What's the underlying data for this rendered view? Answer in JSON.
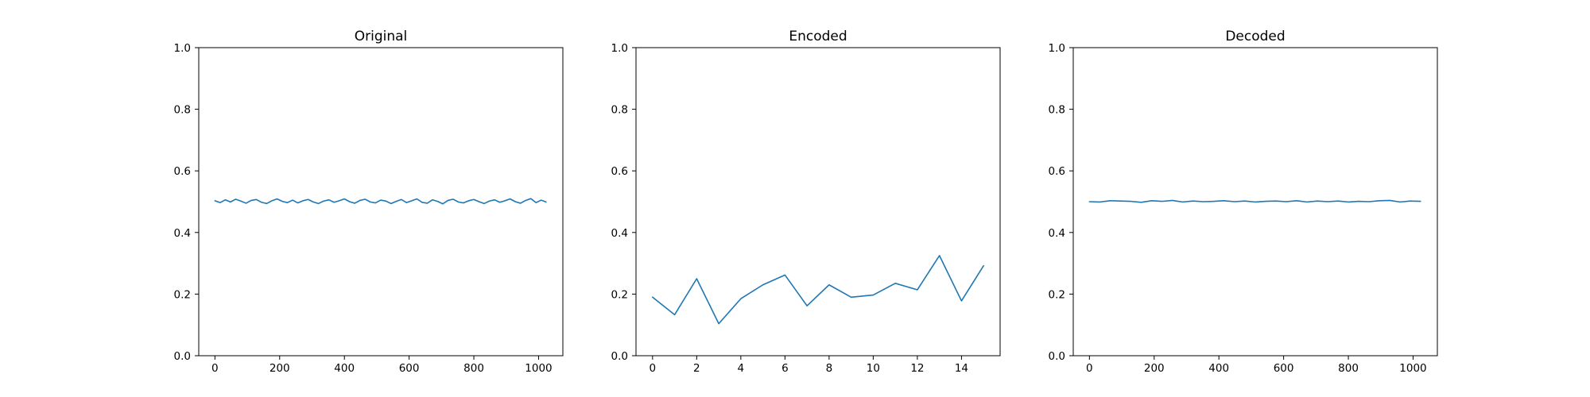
{
  "chart_data": [
    {
      "type": "line",
      "title": "Original",
      "xlabel": "",
      "ylabel": "",
      "xlim": [
        -50,
        1075
      ],
      "ylim": [
        0.0,
        1.0
      ],
      "xticks": [
        0,
        200,
        400,
        600,
        800,
        1000
      ],
      "xtick_labels": [
        "0",
        "200",
        "400",
        "600",
        "800",
        "1000"
      ],
      "yticks": [
        0.0,
        0.2,
        0.4,
        0.6,
        0.8,
        1.0
      ],
      "ytick_labels": [
        "0.0",
        "0.2",
        "0.4",
        "0.6",
        "0.8",
        "1.0"
      ],
      "grid": false,
      "color": "#1f77b4",
      "series": [
        {
          "x": [
            0,
            16,
            32,
            48,
            64,
            80,
            96,
            112,
            128,
            144,
            160,
            176,
            192,
            208,
            224,
            240,
            256,
            272,
            288,
            304,
            320,
            336,
            352,
            368,
            384,
            400,
            416,
            432,
            448,
            464,
            480,
            496,
            512,
            528,
            544,
            560,
            576,
            592,
            608,
            624,
            640,
            656,
            672,
            688,
            704,
            720,
            736,
            752,
            768,
            784,
            800,
            816,
            832,
            848,
            864,
            880,
            896,
            912,
            928,
            944,
            960,
            976,
            992,
            1008,
            1023
          ],
          "values": [
            0.503,
            0.497,
            0.506,
            0.499,
            0.508,
            0.502,
            0.495,
            0.504,
            0.507,
            0.498,
            0.494,
            0.503,
            0.509,
            0.501,
            0.497,
            0.505,
            0.496,
            0.503,
            0.507,
            0.499,
            0.494,
            0.502,
            0.506,
            0.498,
            0.503,
            0.509,
            0.5,
            0.495,
            0.504,
            0.508,
            0.499,
            0.496,
            0.505,
            0.502,
            0.494,
            0.501,
            0.507,
            0.497,
            0.503,
            0.509,
            0.498,
            0.495,
            0.506,
            0.501,
            0.493,
            0.504,
            0.508,
            0.499,
            0.496,
            0.503,
            0.507,
            0.5,
            0.494,
            0.502,
            0.506,
            0.498,
            0.503,
            0.509,
            0.5,
            0.495,
            0.504,
            0.51,
            0.497,
            0.505,
            0.499
          ]
        }
      ]
    },
    {
      "type": "line",
      "title": "Encoded",
      "xlabel": "",
      "ylabel": "",
      "xlim": [
        -0.75,
        15.75
      ],
      "ylim": [
        0.0,
        1.0
      ],
      "xticks": [
        0,
        2,
        4,
        6,
        8,
        10,
        12,
        14
      ],
      "xtick_labels": [
        "0",
        "2",
        "4",
        "6",
        "8",
        "10",
        "12",
        "14"
      ],
      "yticks": [
        0.0,
        0.2,
        0.4,
        0.6,
        0.8,
        1.0
      ],
      "ytick_labels": [
        "0.0",
        "0.2",
        "0.4",
        "0.6",
        "0.8",
        "1.0"
      ],
      "grid": false,
      "color": "#1f77b4",
      "series": [
        {
          "x": [
            0,
            1,
            2,
            3,
            4,
            5,
            6,
            7,
            8,
            9,
            10,
            11,
            12,
            13,
            14,
            15
          ],
          "values": [
            0.19,
            0.133,
            0.25,
            0.104,
            0.185,
            0.23,
            0.262,
            0.162,
            0.23,
            0.19,
            0.197,
            0.235,
            0.214,
            0.325,
            0.178,
            0.292
          ]
        }
      ]
    },
    {
      "type": "line",
      "title": "Decoded",
      "xlabel": "",
      "ylabel": "",
      "xlim": [
        -50,
        1075
      ],
      "ylim": [
        0.0,
        1.0
      ],
      "xticks": [
        0,
        200,
        400,
        600,
        800,
        1000
      ],
      "xtick_labels": [
        "0",
        "200",
        "400",
        "600",
        "800",
        "1000"
      ],
      "yticks": [
        0.0,
        0.2,
        0.4,
        0.6,
        0.8,
        1.0
      ],
      "ytick_labels": [
        "0.0",
        "0.2",
        "0.4",
        "0.6",
        "0.8",
        "1.0"
      ],
      "grid": false,
      "color": "#1f77b4",
      "series": [
        {
          "x": [
            0,
            32,
            64,
            96,
            128,
            160,
            192,
            224,
            256,
            288,
            320,
            352,
            384,
            416,
            448,
            480,
            512,
            544,
            576,
            608,
            640,
            672,
            704,
            736,
            768,
            800,
            832,
            864,
            896,
            928,
            960,
            992,
            1023
          ],
          "values": [
            0.5,
            0.499,
            0.503,
            0.502,
            0.501,
            0.498,
            0.503,
            0.501,
            0.504,
            0.499,
            0.502,
            0.5,
            0.501,
            0.503,
            0.5,
            0.502,
            0.499,
            0.501,
            0.502,
            0.5,
            0.503,
            0.499,
            0.502,
            0.5,
            0.502,
            0.499,
            0.501,
            0.5,
            0.503,
            0.504,
            0.499,
            0.502,
            0.501
          ]
        }
      ]
    }
  ]
}
